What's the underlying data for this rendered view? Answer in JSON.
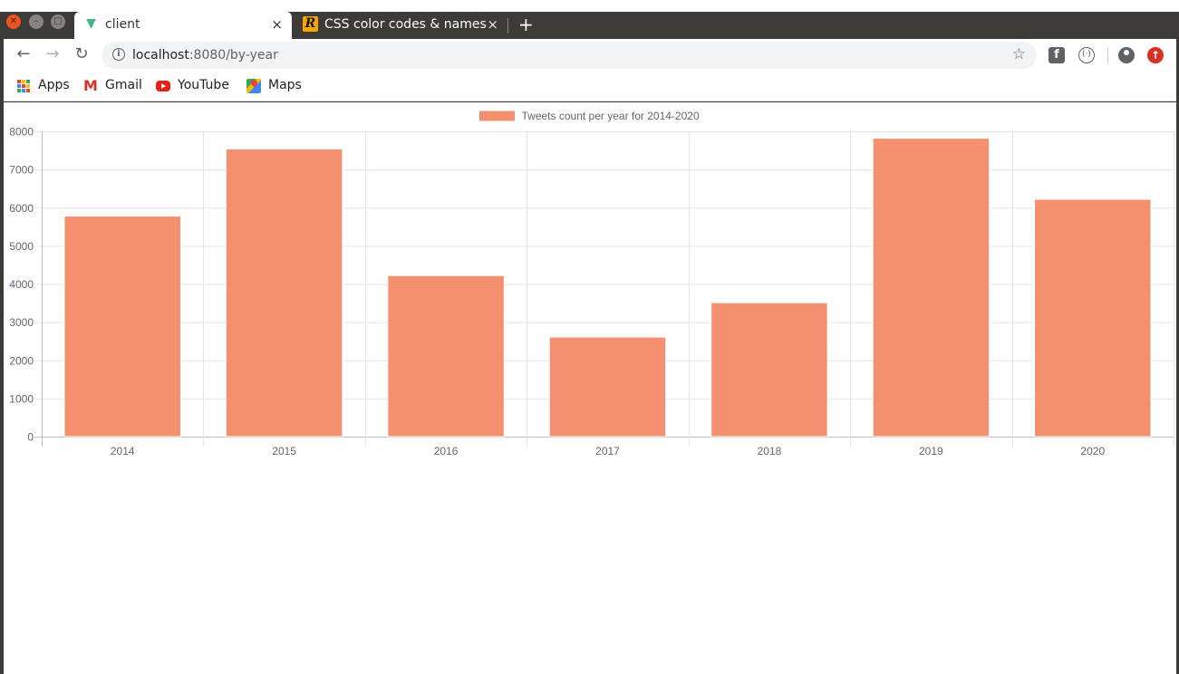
{
  "browser": {
    "tabs": [
      {
        "title": "client",
        "icon": "vue-logo-icon",
        "active": true,
        "close": "×"
      },
      {
        "title": "CSS color codes & names",
        "icon": "rapidtables-logo-icon",
        "active": false,
        "close": "×"
      }
    ],
    "new_tab": "+",
    "url": {
      "host": "localhost",
      "path": ":8080/by-year"
    },
    "bookmarks": [
      {
        "label": "Apps",
        "icon": "apps-grid-icon"
      },
      {
        "label": "Gmail",
        "icon": "gmail-icon"
      },
      {
        "label": "YouTube",
        "icon": "youtube-icon"
      },
      {
        "label": "Maps",
        "icon": "maps-icon"
      }
    ]
  },
  "colors": {
    "bar": "#f4906f",
    "bar_border": "#ffffff",
    "grid": "#e5e5e5",
    "axis": "#bdbdbd",
    "tick_text": "#666666"
  },
  "chart_data": {
    "type": "bar",
    "legend": "Tweets count per year for 2014-2020",
    "legend_position": "top-center",
    "categories": [
      "2014",
      "2015",
      "2016",
      "2017",
      "2018",
      "2019",
      "2020"
    ],
    "values": [
      5780,
      7540,
      4220,
      2610,
      3510,
      7820,
      6220
    ],
    "ylim": [
      0,
      8000
    ],
    "yticks": [
      0,
      1000,
      2000,
      3000,
      4000,
      5000,
      6000,
      7000,
      8000
    ],
    "grid": true
  }
}
